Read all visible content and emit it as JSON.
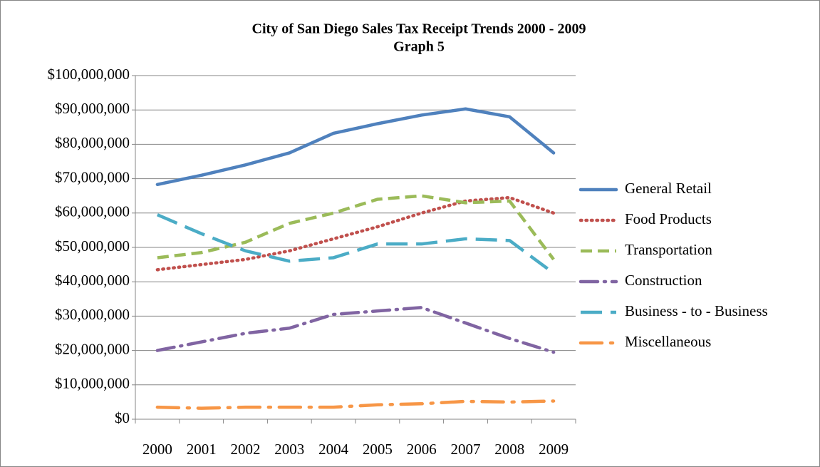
{
  "chart_data": {
    "type": "line",
    "title": "City of San Diego Sales Tax Receipt Trends 2000 - 2009",
    "subtitle": "Graph 5",
    "categories": [
      "2000",
      "2001",
      "2002",
      "2003",
      "2004",
      "2005",
      "2006",
      "2007",
      "2008",
      "2009"
    ],
    "series": [
      {
        "name": "General Retail",
        "color": "#4f81bd",
        "dash": "solid",
        "values": [
          68300000,
          71000000,
          74000000,
          77500000,
          83200000,
          86000000,
          88500000,
          90300000,
          88000000,
          77500000
        ]
      },
      {
        "name": "Food Products",
        "color": "#c0504d",
        "dash": "dotted",
        "values": [
          43500000,
          45000000,
          46500000,
          49000000,
          52500000,
          56000000,
          60000000,
          63500000,
          64500000,
          60000000
        ]
      },
      {
        "name": "Transportation",
        "color": "#9bbb59",
        "dash": "dashed",
        "values": [
          47000000,
          48500000,
          51500000,
          57000000,
          60000000,
          64000000,
          65000000,
          63000000,
          63500000,
          46500000
        ]
      },
      {
        "name": "Construction",
        "color": "#8064a2",
        "dash": "dashdot",
        "values": [
          20000000,
          22500000,
          25000000,
          26500000,
          30500000,
          31500000,
          32500000,
          28000000,
          23500000,
          19500000
        ]
      },
      {
        "name": "Business - to - Business",
        "color": "#4bacc6",
        "dash": "longdash",
        "values": [
          59500000,
          54000000,
          49000000,
          46000000,
          47000000,
          51000000,
          51000000,
          52500000,
          52000000,
          42500000
        ]
      },
      {
        "name": "Miscellaneous",
        "color": "#f79646",
        "dash": "longdashdot",
        "values": [
          3500000,
          3200000,
          3500000,
          3500000,
          3500000,
          4200000,
          4500000,
          5200000,
          5000000,
          5300000
        ]
      }
    ],
    "ylim": [
      0,
      100000000
    ],
    "yticks": [
      {
        "value": 0,
        "label": "$0"
      },
      {
        "value": 10000000,
        "label": "$10,000,000"
      },
      {
        "value": 20000000,
        "label": "$20,000,000"
      },
      {
        "value": 30000000,
        "label": "$30,000,000"
      },
      {
        "value": 40000000,
        "label": "$40,000,000"
      },
      {
        "value": 50000000,
        "label": "$50,000,000"
      },
      {
        "value": 60000000,
        "label": "$60,000,000"
      },
      {
        "value": 70000000,
        "label": "$70,000,000"
      },
      {
        "value": 80000000,
        "label": "$80,000,000"
      },
      {
        "value": 90000000,
        "label": "$90,000,000"
      },
      {
        "value": 100000000,
        "label": "$100,000,000"
      }
    ],
    "grid": true,
    "legend": "right"
  }
}
